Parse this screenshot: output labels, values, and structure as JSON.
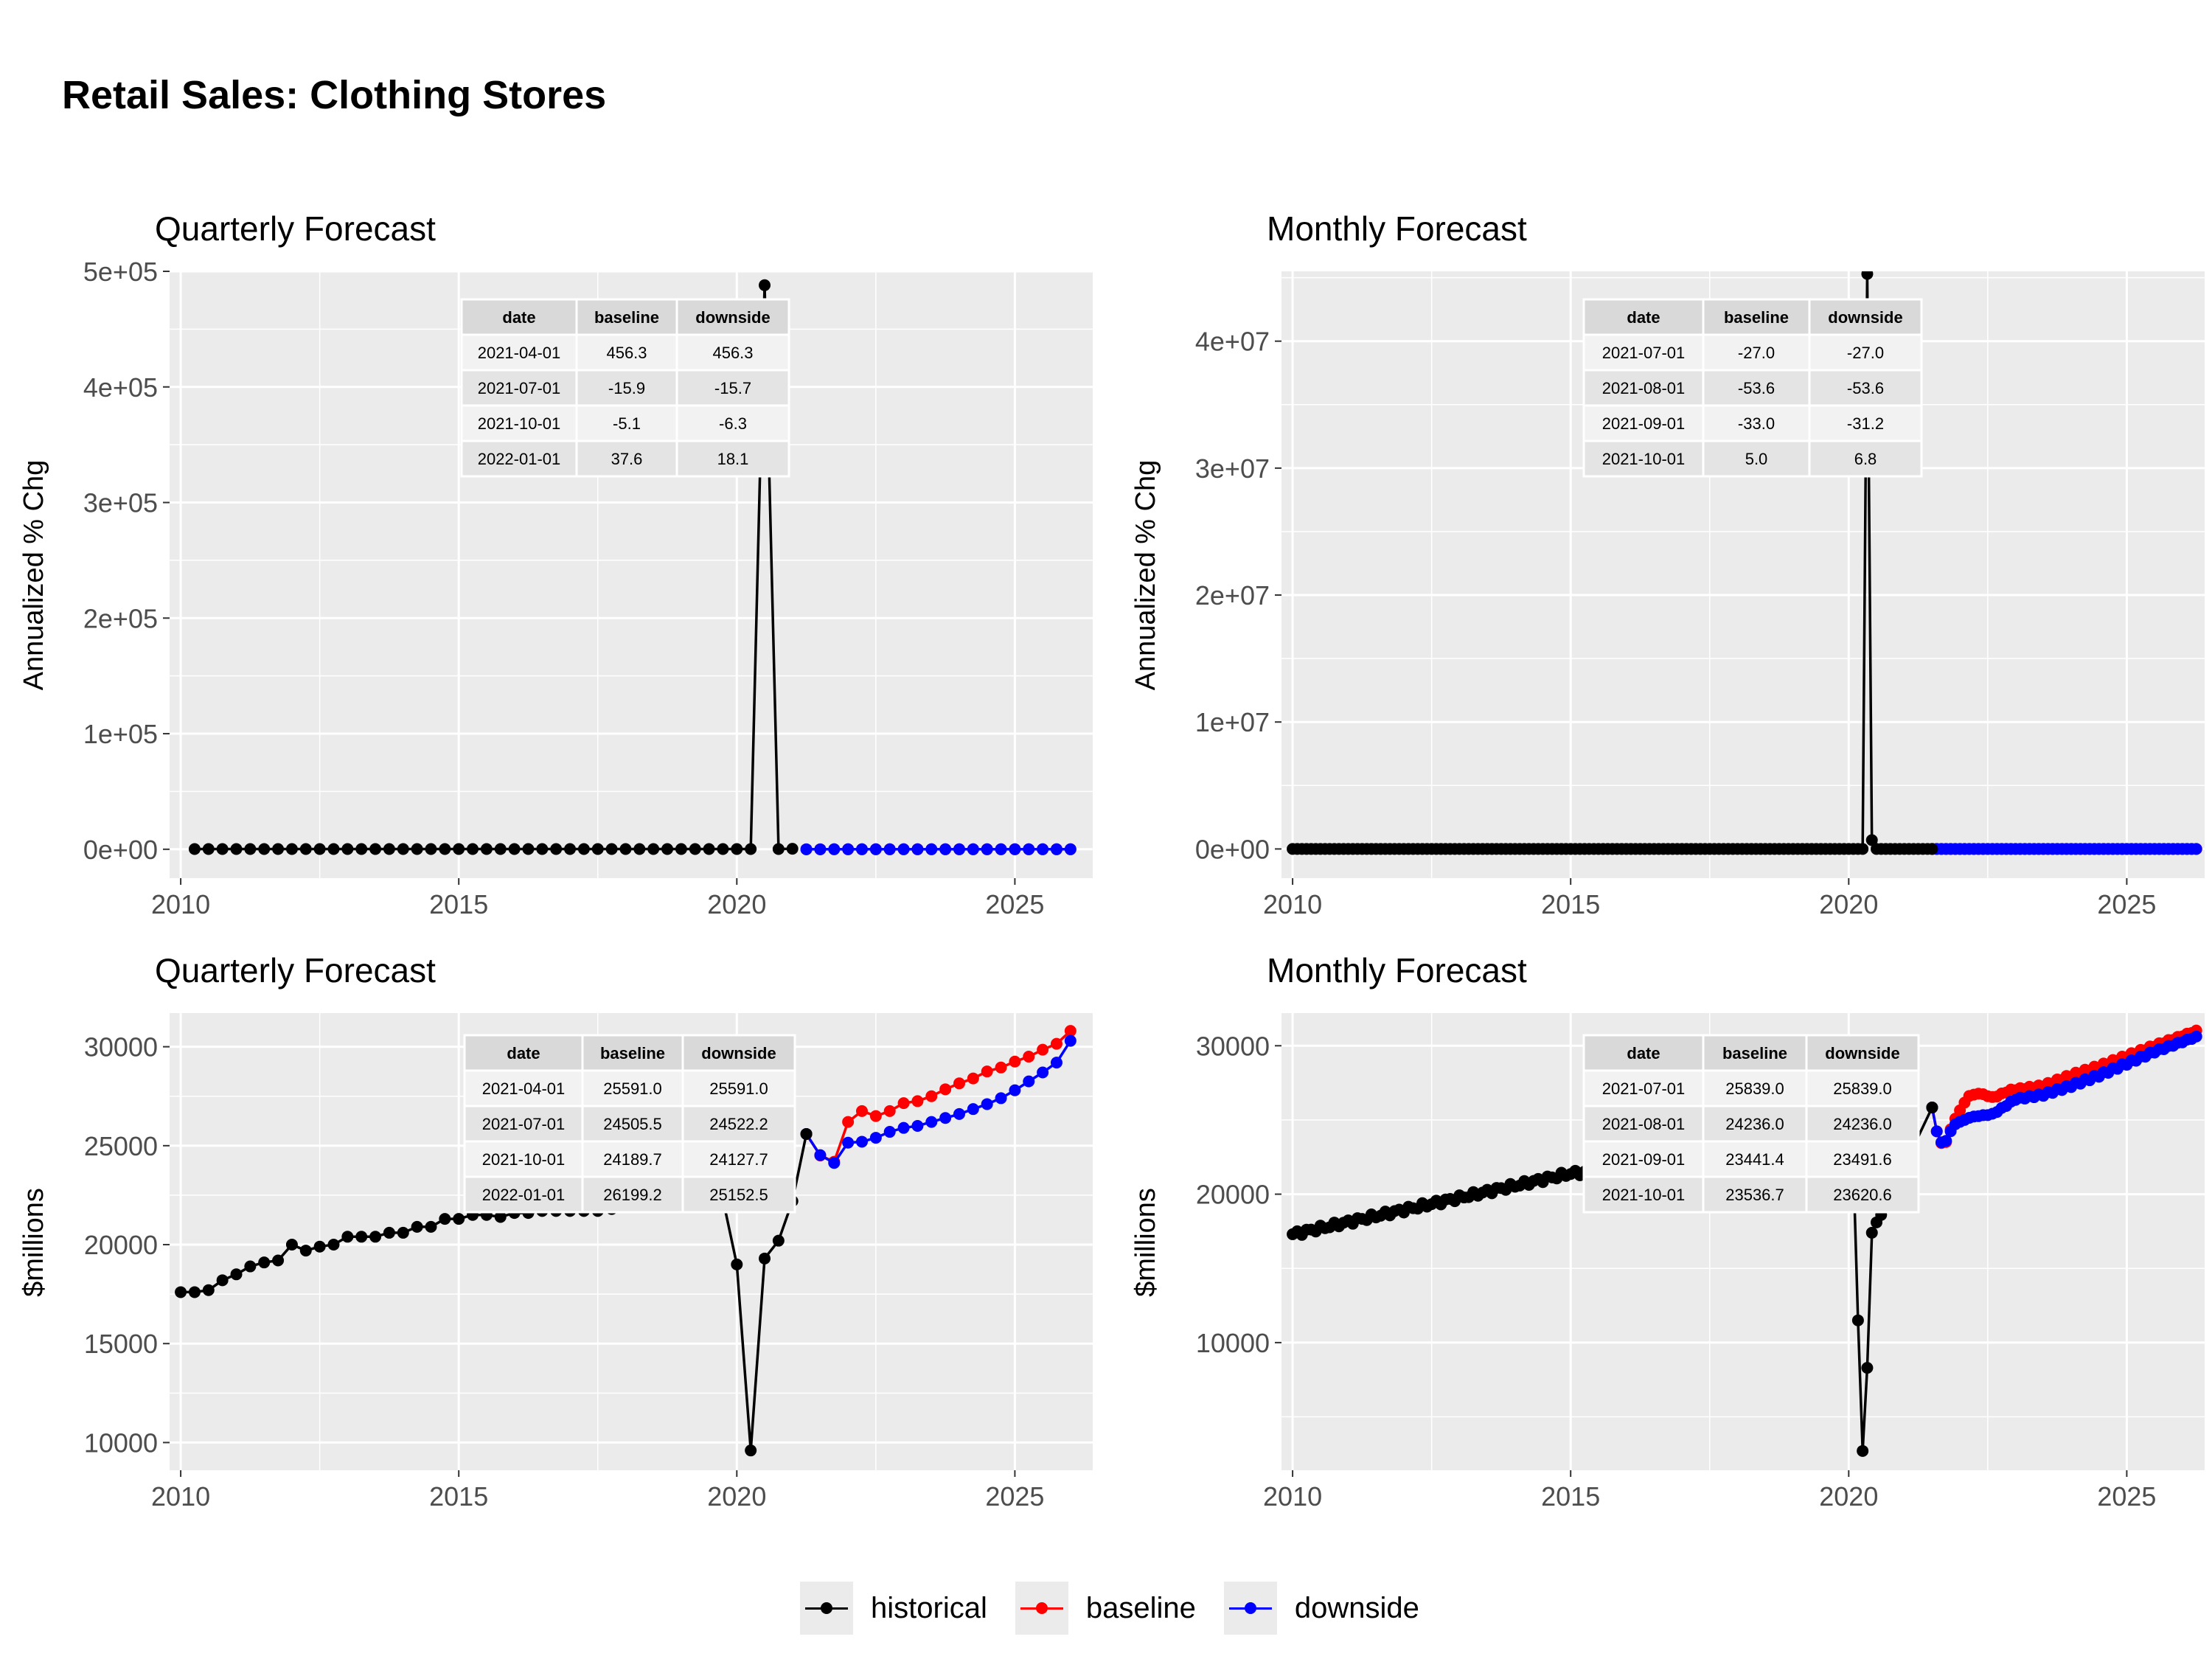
{
  "title": "Retail Sales: Clothing Stores",
  "colors": {
    "historical": "#000000",
    "baseline": "#ff0000",
    "downside": "#0000ff",
    "panel_bg": "#ebebeb",
    "grid": "#ffffff"
  },
  "legend": [
    {
      "key": "historical",
      "label": "historical"
    },
    {
      "key": "baseline",
      "label": "baseline"
    },
    {
      "key": "downside",
      "label": "downside"
    }
  ],
  "chart_data": [
    {
      "id": "qpct",
      "type": "line",
      "title": "Quarterly Forecast",
      "ylabel": "Annualized % Chg",
      "xlim": [
        2009.8,
        2026.4
      ],
      "ylim": [
        -25000,
        500000
      ],
      "yticks": [
        0,
        100000,
        200000,
        300000,
        400000,
        500000
      ],
      "ytick_labels": [
        "0e+00",
        "1e+05",
        "2e+05",
        "3e+05",
        "4e+05",
        "5e+05"
      ],
      "xticks": [
        2010,
        2015,
        2020,
        2025
      ],
      "xtick_labels": [
        "2010",
        "2015",
        "2020",
        "2025"
      ],
      "historical": {
        "x": [
          2010.25,
          2010.5,
          2010.75,
          2011,
          2011.25,
          2011.5,
          2011.75,
          2012,
          2012.25,
          2012.5,
          2012.75,
          2013,
          2013.25,
          2013.5,
          2013.75,
          2014,
          2014.25,
          2014.5,
          2014.75,
          2015,
          2015.25,
          2015.5,
          2015.75,
          2016,
          2016.25,
          2016.5,
          2016.75,
          2017,
          2017.25,
          2017.5,
          2017.75,
          2018,
          2018.25,
          2018.5,
          2018.75,
          2019,
          2019.25,
          2019.5,
          2019.75,
          2020,
          2020.25,
          2020.5,
          2020.75,
          2021
        ],
        "y": [
          200,
          200,
          200,
          200,
          200,
          200,
          200,
          200,
          200,
          200,
          200,
          200,
          200,
          200,
          200,
          200,
          200,
          200,
          200,
          200,
          200,
          200,
          200,
          200,
          200,
          200,
          200,
          200,
          200,
          200,
          200,
          200,
          200,
          200,
          200,
          200,
          200,
          200,
          200,
          200,
          200,
          488000,
          200,
          456
        ]
      },
      "baseline": {
        "x": [
          2021.25,
          2021.5,
          2021.75,
          2022,
          2022.25,
          2022.5,
          2022.75,
          2023,
          2023.25,
          2023.5,
          2023.75,
          2024,
          2024.25,
          2024.5,
          2024.75,
          2025,
          2025.25,
          2025.5,
          2025.75,
          2026
        ],
        "y": [
          -16,
          -5,
          38,
          10,
          8,
          6,
          5,
          5,
          4,
          4,
          4,
          4,
          4,
          4,
          4,
          4,
          4,
          4,
          4,
          4
        ]
      },
      "downside": {
        "x": [
          2021.25,
          2021.5,
          2021.75,
          2022,
          2022.25,
          2022.5,
          2022.75,
          2023,
          2023.25,
          2023.5,
          2023.75,
          2024,
          2024.25,
          2024.5,
          2024.75,
          2025,
          2025.25,
          2025.5,
          2025.75,
          2026
        ],
        "y": [
          -16,
          -6,
          18,
          5,
          4,
          4,
          3,
          3,
          3,
          3,
          3,
          3,
          3,
          3,
          3,
          3,
          3,
          3,
          3,
          3
        ]
      },
      "table": {
        "columns": [
          "date",
          "baseline",
          "downside"
        ],
        "rows": [
          [
            "2021-04-01",
            "456.3",
            "456.3"
          ],
          [
            "2021-07-01",
            "-15.9",
            "-15.7"
          ],
          [
            "2021-10-01",
            "-5.1",
            "-6.3"
          ],
          [
            "2022-01-01",
            "37.6",
            "18.1"
          ]
        ]
      }
    },
    {
      "id": "mpct",
      "type": "line",
      "title": "Monthly Forecast",
      "ylabel": "Annualized % Chg",
      "xlim": [
        2009.8,
        2026.4
      ],
      "ylim": [
        -2300000,
        45500000
      ],
      "yticks": [
        0,
        10000000,
        20000000,
        30000000,
        40000000
      ],
      "ytick_labels": [
        "0e+00",
        "1e+07",
        "2e+07",
        "3e+07",
        "4e+07"
      ],
      "xticks": [
        2010,
        2015,
        2020,
        2025
      ],
      "xtick_labels": [
        "2010",
        "2015",
        "2020",
        "2025"
      ],
      "historical": {
        "x_start": 2010.0,
        "x_step": 0.0833333,
        "count": 139,
        "base_y": 0,
        "spikes": [
          {
            "x": 2020.333,
            "y": 45300000
          },
          {
            "x": 2020.417,
            "y": 700000
          }
        ]
      },
      "baseline": {
        "x_start": 2021.5,
        "x_end": 2026.25,
        "y": 0
      },
      "downside": {
        "x_start": 2021.5,
        "x_end": 2026.25,
        "y": 0
      },
      "table": {
        "columns": [
          "date",
          "baseline",
          "downside"
        ],
        "rows": [
          [
            "2021-07-01",
            "-27.0",
            "-27.0"
          ],
          [
            "2021-08-01",
            "-53.6",
            "-53.6"
          ],
          [
            "2021-09-01",
            "-33.0",
            "-31.2"
          ],
          [
            "2021-10-01",
            "5.0",
            "6.8"
          ]
        ]
      }
    },
    {
      "id": "qlvl",
      "type": "line",
      "title": "Quarterly Forecast",
      "ylabel": "$millions",
      "xlim": [
        2009.8,
        2026.4
      ],
      "ylim": [
        8600,
        31700
      ],
      "yticks": [
        10000,
        15000,
        20000,
        25000,
        30000
      ],
      "ytick_labels": [
        "10000",
        "15000",
        "20000",
        "25000",
        "30000"
      ],
      "xticks": [
        2010,
        2015,
        2020,
        2025
      ],
      "xtick_labels": [
        "2010",
        "2015",
        "2020",
        "2025"
      ],
      "historical": {
        "x": [
          2010,
          2010.25,
          2010.5,
          2010.75,
          2011,
          2011.25,
          2011.5,
          2011.75,
          2012,
          2012.25,
          2012.5,
          2012.75,
          2013,
          2013.25,
          2013.5,
          2013.75,
          2014,
          2014.25,
          2014.5,
          2014.75,
          2015,
          2015.25,
          2015.5,
          2015.75,
          2016,
          2016.25,
          2016.5,
          2016.75,
          2017,
          2017.25,
          2017.5,
          2017.75,
          2018,
          2018.25,
          2018.5,
          2018.75,
          2019,
          2019.25,
          2019.5,
          2019.75,
          2020,
          2020.25,
          2020.5,
          2020.75,
          2021,
          2021.25
        ],
        "y": [
          17600,
          17600,
          17700,
          18200,
          18500,
          18900,
          19100,
          19200,
          20000,
          19700,
          19900,
          20000,
          20400,
          20400,
          20400,
          20600,
          20600,
          20900,
          20900,
          21300,
          21300,
          21500,
          21500,
          21400,
          21600,
          21600,
          21700,
          21700,
          21700,
          21700,
          21700,
          21800,
          21900,
          22000,
          22100,
          22100,
          22200,
          22300,
          22400,
          22300,
          19000,
          9600,
          19300,
          20200,
          22200,
          25591
        ]
      },
      "baseline": {
        "x": [
          2021.25,
          2021.5,
          2021.75,
          2022,
          2022.25,
          2022.5,
          2022.75,
          2023,
          2023.25,
          2023.5,
          2023.75,
          2024,
          2024.25,
          2024.5,
          2024.75,
          2025,
          2025.25,
          2025.5,
          2025.75,
          2026
        ],
        "y": [
          25591,
          24506,
          24190,
          26199,
          26750,
          26500,
          26750,
          27150,
          27250,
          27500,
          27850,
          28150,
          28400,
          28750,
          28950,
          29250,
          29500,
          29850,
          30150,
          30800
        ]
      },
      "downside": {
        "x": [
          2021.25,
          2021.5,
          2021.75,
          2022,
          2022.25,
          2022.5,
          2022.75,
          2023,
          2023.25,
          2023.5,
          2023.75,
          2024,
          2024.25,
          2024.5,
          2024.75,
          2025,
          2025.25,
          2025.5,
          2025.75,
          2026
        ],
        "y": [
          25591,
          24522,
          24128,
          25153,
          25200,
          25400,
          25700,
          25900,
          26000,
          26200,
          26400,
          26600,
          26850,
          27100,
          27400,
          27800,
          28250,
          28700,
          29200,
          30300
        ]
      },
      "table": {
        "columns": [
          "date",
          "baseline",
          "downside"
        ],
        "rows": [
          [
            "2021-04-01",
            "25591.0",
            "25591.0"
          ],
          [
            "2021-07-01",
            "24505.5",
            "24522.2"
          ],
          [
            "2021-10-01",
            "24189.7",
            "24127.7"
          ],
          [
            "2022-01-01",
            "26199.2",
            "25152.5"
          ]
        ]
      }
    },
    {
      "id": "mlvl",
      "type": "line",
      "title": "Monthly Forecast",
      "ylabel": "$millions",
      "xlim": [
        2009.8,
        2026.4
      ],
      "ylim": [
        1400,
        32200
      ],
      "yticks": [
        10000,
        20000,
        30000
      ],
      "ytick_labels": [
        "10000",
        "20000",
        "30000"
      ],
      "xticks": [
        2010,
        2015,
        2020,
        2025
      ],
      "xtick_labels": [
        "2010",
        "2015",
        "2020",
        "2025"
      ],
      "historical": {
        "x_start": 2010.0,
        "x_step": 0.0833333,
        "count": 139,
        "y_start": 17300,
        "y_slope_per_year": 450,
        "y_2015": 21400,
        "y_2019_end": 22600,
        "shock": [
          {
            "x": 2020.0,
            "y": 22300
          },
          {
            "x": 2020.083,
            "y": 22000
          },
          {
            "x": 2020.167,
            "y": 11500
          },
          {
            "x": 2020.25,
            "y": 2700
          },
          {
            "x": 2020.333,
            "y": 8300
          },
          {
            "x": 2020.417,
            "y": 17400
          },
          {
            "x": 2020.5,
            "y": 18100
          },
          {
            "x": 2020.583,
            "y": 18600
          },
          {
            "x": 2021.5,
            "y": 25839
          }
        ]
      },
      "baseline": {
        "x_start": 2021.5,
        "x_end": 2026.25,
        "knots": [
          [
            2021.5,
            25839
          ],
          [
            2021.583,
            24236
          ],
          [
            2021.667,
            23441
          ],
          [
            2021.75,
            23537
          ],
          [
            2021.9,
            25000
          ],
          [
            2022.15,
            26600
          ],
          [
            2022.35,
            26800
          ],
          [
            2022.6,
            26500
          ],
          [
            2022.9,
            27000
          ],
          [
            2023.5,
            27300
          ],
          [
            2024.0,
            28000
          ],
          [
            2024.5,
            28600
          ],
          [
            2025.0,
            29300
          ],
          [
            2025.5,
            30000
          ],
          [
            2026.25,
            31000
          ]
        ]
      },
      "downside": {
        "x_start": 2021.5,
        "x_end": 2026.25,
        "knots": [
          [
            2021.5,
            25839
          ],
          [
            2021.583,
            24236
          ],
          [
            2021.667,
            23492
          ],
          [
            2021.75,
            23621
          ],
          [
            2021.9,
            24700
          ],
          [
            2022.2,
            25200
          ],
          [
            2022.6,
            25400
          ],
          [
            2023.0,
            26400
          ],
          [
            2023.5,
            26700
          ],
          [
            2024.0,
            27300
          ],
          [
            2024.5,
            28000
          ],
          [
            2025.0,
            28800
          ],
          [
            2025.5,
            29600
          ],
          [
            2026.25,
            30600
          ]
        ]
      },
      "table": {
        "columns": [
          "date",
          "baseline",
          "downside"
        ],
        "rows": [
          [
            "2021-07-01",
            "25839.0",
            "25839.0"
          ],
          [
            "2021-08-01",
            "24236.0",
            "24236.0"
          ],
          [
            "2021-09-01",
            "23441.4",
            "23491.6"
          ],
          [
            "2021-10-01",
            "23536.7",
            "23620.6"
          ]
        ]
      }
    }
  ]
}
